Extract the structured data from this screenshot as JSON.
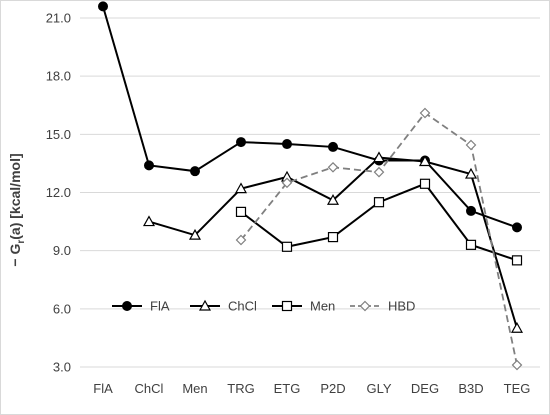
{
  "chart_data": {
    "type": "line",
    "ylabel": "− G_r(a) [kcal/mol]",
    "ylabel_main": "− G",
    "ylabel_sub": "r",
    "ylabel_rest": "(a) [kcal/mol]",
    "ylim": [
      3.0,
      21.0
    ],
    "yticks": [
      "3.0",
      "6.0",
      "9.0",
      "12.0",
      "15.0",
      "18.0",
      "21.0"
    ],
    "categories": [
      "FlA",
      "ChCl",
      "Men",
      "TRG",
      "ETG",
      "P2D",
      "GLY",
      "DEG",
      "B3D",
      "TEG"
    ],
    "grid": "horizontal",
    "legend_position": "bottom-inside",
    "series": [
      {
        "name": "FlA",
        "marker": "circle-filled",
        "style": "solid",
        "color": "#000000",
        "values": [
          21.6,
          13.4,
          13.1,
          14.6,
          14.5,
          14.35,
          13.65,
          13.65,
          11.05,
          10.2
        ]
      },
      {
        "name": "ChCl",
        "marker": "triangle-open",
        "style": "solid",
        "color": "#000000",
        "values": [
          null,
          10.5,
          9.8,
          12.2,
          12.8,
          11.6,
          13.8,
          13.6,
          12.95,
          5.0
        ]
      },
      {
        "name": "Men",
        "marker": "square-open",
        "style": "solid",
        "color": "#000000",
        "values": [
          null,
          null,
          null,
          11.0,
          9.2,
          9.7,
          11.5,
          12.45,
          9.3,
          8.5
        ]
      },
      {
        "name": "HBD",
        "marker": "diamond-open",
        "style": "dashed",
        "color": "#808080",
        "values": [
          null,
          null,
          null,
          9.55,
          12.5,
          13.3,
          13.05,
          16.1,
          14.45,
          3.1
        ]
      }
    ]
  }
}
